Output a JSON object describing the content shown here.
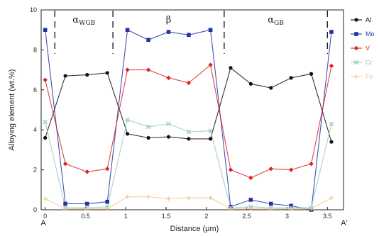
{
  "chart_data": {
    "type": "line",
    "xlabel": "Distance (μm)",
    "ylabel": "Alloying element (wt.%)",
    "xlim": [
      -0.05,
      3.7
    ],
    "ylim": [
      0,
      10
    ],
    "x_ticks": [
      "0",
      "0.5",
      "1",
      "1.5",
      "2",
      "2.5",
      "3",
      "3.5"
    ],
    "y_ticks": [
      "0",
      "2",
      "4",
      "6",
      "8",
      "10"
    ],
    "grid": false,
    "legend_position": "right",
    "endpoints": {
      "start": "A",
      "end": "A'"
    },
    "regions": [
      {
        "base": "α",
        "sub": "WGB",
        "x_start": 0.12,
        "x_end": 0.84
      },
      {
        "base": "β",
        "sub": "",
        "x_start": 0.84,
        "x_end": 2.22
      },
      {
        "base": "α",
        "sub": "GB",
        "x_start": 2.22,
        "x_end": 3.5
      }
    ],
    "series": [
      {
        "name": "Al",
        "color": "#111111",
        "marker": "circle",
        "x": [
          0,
          0.25,
          0.52,
          0.77,
          1.02,
          1.28,
          1.53,
          1.78,
          2.05,
          2.3,
          2.55,
          2.8,
          3.05,
          3.3,
          3.55
        ],
        "y": [
          3.6,
          6.7,
          6.75,
          6.85,
          3.8,
          3.6,
          3.65,
          3.55,
          3.55,
          7.1,
          6.3,
          6.1,
          6.6,
          6.8,
          3.4
        ]
      },
      {
        "name": "Mo",
        "color": "#2233aa",
        "marker": "square",
        "x": [
          0,
          0.25,
          0.52,
          0.77,
          1.02,
          1.28,
          1.53,
          1.78,
          2.05,
          2.3,
          2.55,
          2.8,
          3.05,
          3.3,
          3.55
        ],
        "y": [
          9.0,
          0.3,
          0.3,
          0.4,
          9.0,
          8.5,
          8.9,
          8.75,
          9.0,
          0.15,
          0.5,
          0.3,
          0.2,
          0.0,
          8.9
        ]
      },
      {
        "name": "V",
        "color": "#dd2222",
        "marker": "diamond",
        "x": [
          0,
          0.25,
          0.52,
          0.77,
          1.02,
          1.28,
          1.53,
          1.78,
          2.05,
          2.3,
          2.55,
          2.8,
          3.05,
          3.3,
          3.55
        ],
        "y": [
          6.5,
          2.3,
          1.9,
          2.05,
          7.0,
          7.0,
          6.6,
          6.35,
          7.25,
          2.0,
          1.6,
          2.05,
          2.0,
          2.3,
          7.2
        ]
      },
      {
        "name": "Cr",
        "color": "#9cc9bf",
        "marker": "x",
        "x": [
          0,
          0.25,
          0.52,
          0.77,
          1.02,
          1.28,
          1.53,
          1.78,
          2.05,
          2.3,
          2.55,
          2.8,
          3.05,
          3.3,
          3.55
        ],
        "y": [
          4.4,
          0.1,
          0.1,
          0.15,
          4.5,
          4.15,
          4.3,
          3.9,
          3.95,
          0.1,
          0.15,
          0.1,
          0.1,
          0.1,
          4.3
        ]
      },
      {
        "name": "Fe",
        "color": "#f2c98a",
        "marker": "plus",
        "x": [
          0,
          0.25,
          0.52,
          0.77,
          1.02,
          1.28,
          1.53,
          1.78,
          2.05,
          2.3,
          2.55,
          2.8,
          3.05,
          3.3,
          3.55
        ],
        "y": [
          0.55,
          0.05,
          0.05,
          0.05,
          0.65,
          0.65,
          0.55,
          0.6,
          0.6,
          0.05,
          0.05,
          0.05,
          0.05,
          0.05,
          0.6
        ]
      }
    ]
  }
}
